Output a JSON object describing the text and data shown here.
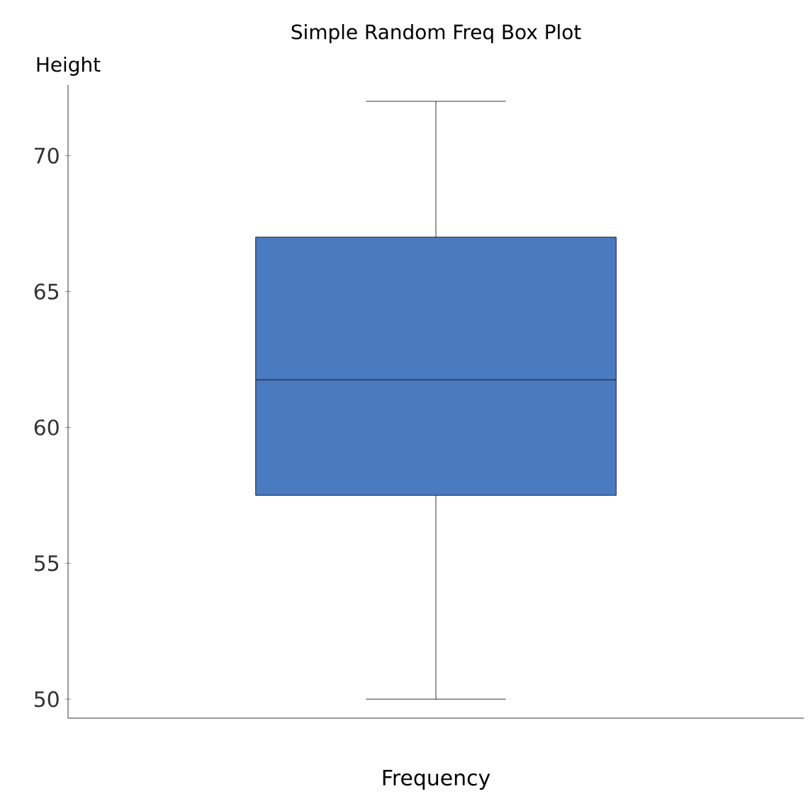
{
  "chart_data": {
    "type": "box",
    "title": "Simple Random Freq Box Plot",
    "xlabel": "Frequency",
    "ylabel": "Height",
    "categories": [
      null
    ],
    "series": [
      {
        "color": "#4a7abf",
        "boxes": [
          {
            "low": 50,
            "q1": 57.5,
            "median": 61.75,
            "q3": 67,
            "high": 72
          }
        ]
      }
    ],
    "ylim": [
      49.3,
      72.6
    ],
    "yticks": [
      50,
      55,
      60,
      65,
      70
    ]
  }
}
